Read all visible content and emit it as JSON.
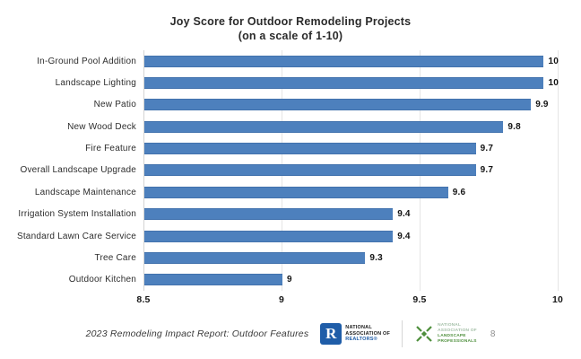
{
  "title": {
    "line1": "Joy Score for Outdoor Remodeling Projects",
    "line2": "(on a scale of 1-10)"
  },
  "chart_data": {
    "type": "bar",
    "orientation": "horizontal",
    "title": "Joy Score for Outdoor Remodeling Projects (on a scale of 1-10)",
    "categories": [
      "In-Ground Pool Addition",
      "Landscape Lighting",
      "New Patio",
      "New Wood Deck",
      "Fire Feature",
      "Overall Landscape Upgrade",
      "Landscape Maintenance",
      "Irrigation System Installation",
      "Standard Lawn Care Service",
      "Tree Care",
      "Outdoor Kitchen"
    ],
    "values": [
      10,
      10,
      9.9,
      9.8,
      9.7,
      9.7,
      9.6,
      9.4,
      9.4,
      9.3,
      9
    ],
    "value_labels": [
      "10",
      "10",
      "9.9",
      "9.8",
      "9.7",
      "9.7",
      "9.6",
      "9.4",
      "9.4",
      "9.3",
      "9"
    ],
    "xlim": [
      8.5,
      10
    ],
    "x_ticks": [
      8.5,
      9,
      9.5,
      10
    ],
    "x_tick_labels": [
      "8.5",
      "9",
      "9.5",
      "10"
    ],
    "grid": "vertical gridlines at 9, 9.5 and 10; axis line at 8.5",
    "legend": "none",
    "bar_color": "#4d80bd"
  },
  "footer": {
    "source_text": "2023 Remodeling Impact Report: Outdoor Features",
    "nar_logo": {
      "mark_letter": "R",
      "mark_color": "#1f5da8",
      "line1": "NATIONAL",
      "line2": "ASSOCIATION OF",
      "line3": "REALTORS®"
    },
    "nalp_logo": {
      "mark_color": "#4e8f3c",
      "line1": "NATIONAL",
      "line2": "ASSOCIATION OF",
      "line3": "LANDSCAPE",
      "line4": "PROFESSIONALS"
    },
    "page_number": "8"
  }
}
